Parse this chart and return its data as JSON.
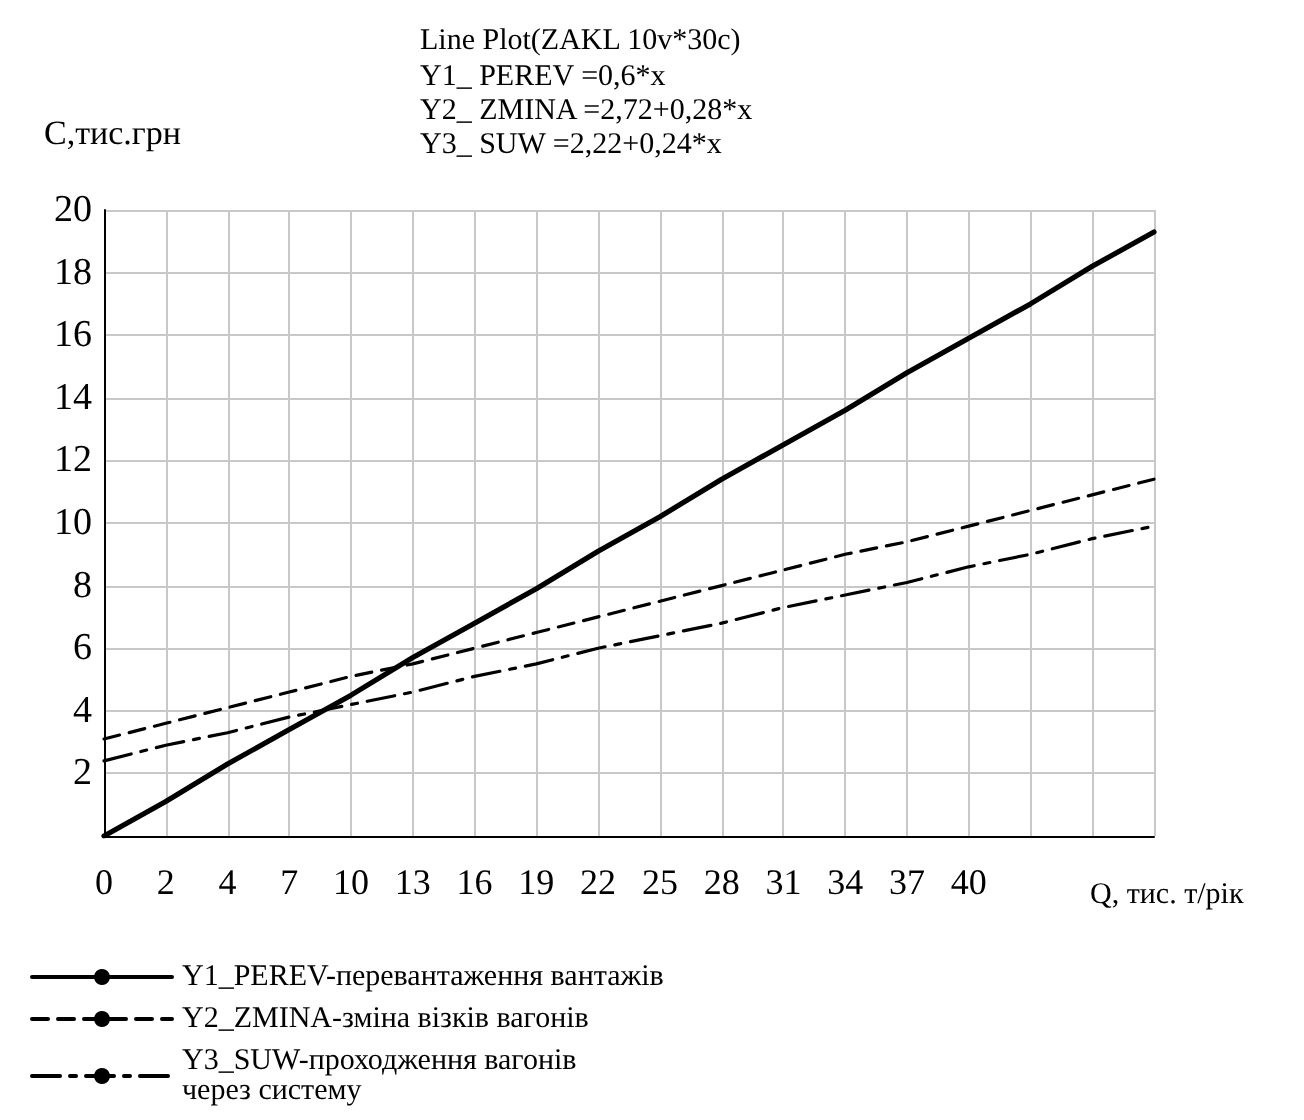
{
  "chart_data": {
    "type": "line",
    "title": "Line Plot(ZAKL 10v*30c)",
    "subtitle": "Y1_ PEREV =0,6*x\nY2_ ZMINA =2,72+0,28*x\nY3_ SUW =2,22+0,24*x",
    "xlabel": "Q, тис. т/рік",
    "ylabel": "С,тис.грн",
    "categories": [
      "0",
      "2",
      "4",
      "7",
      "10",
      "13",
      "16",
      "19",
      "22",
      "25",
      "28",
      "31",
      "34",
      "37",
      "40",
      null,
      null,
      null
    ],
    "series": [
      {
        "name": "Y1_PEREV-перевантаження вантажів",
        "color": "#000000",
        "line_style": "solid",
        "values": [
          0,
          1.1,
          2.3,
          3.4,
          4.5,
          5.7,
          6.8,
          7.9,
          9.1,
          10.2,
          11.4,
          12.5,
          13.6,
          14.8,
          15.9,
          17.0,
          18.2,
          19.3
        ]
      },
      {
        "name": "Y2_ZMINA-зміна візків вагонів",
        "color": "#000000",
        "line_style": "dashed",
        "values": [
          3.1,
          3.6,
          4.1,
          4.6,
          5.1,
          5.5,
          6.0,
          6.5,
          7.0,
          7.5,
          8.0,
          8.5,
          9.0,
          9.4,
          9.9,
          10.4,
          10.9,
          11.4
        ]
      },
      {
        "name": "Y3_SUW-проходження вагонів\nчерез систему",
        "color": "#000000",
        "line_style": "dashdot",
        "values": [
          2.4,
          2.9,
          3.3,
          3.8,
          4.2,
          4.6,
          5.1,
          5.5,
          6.0,
          6.4,
          6.8,
          7.3,
          7.7,
          8.1,
          8.6,
          9.0,
          9.5,
          9.9
        ]
      }
    ],
    "ylim": [
      0,
      20
    ],
    "yticks": [
      2,
      4,
      6,
      8,
      10,
      12,
      14,
      16,
      18,
      20
    ],
    "grid": true,
    "legend": "bottom left",
    "marker": "none"
  }
}
